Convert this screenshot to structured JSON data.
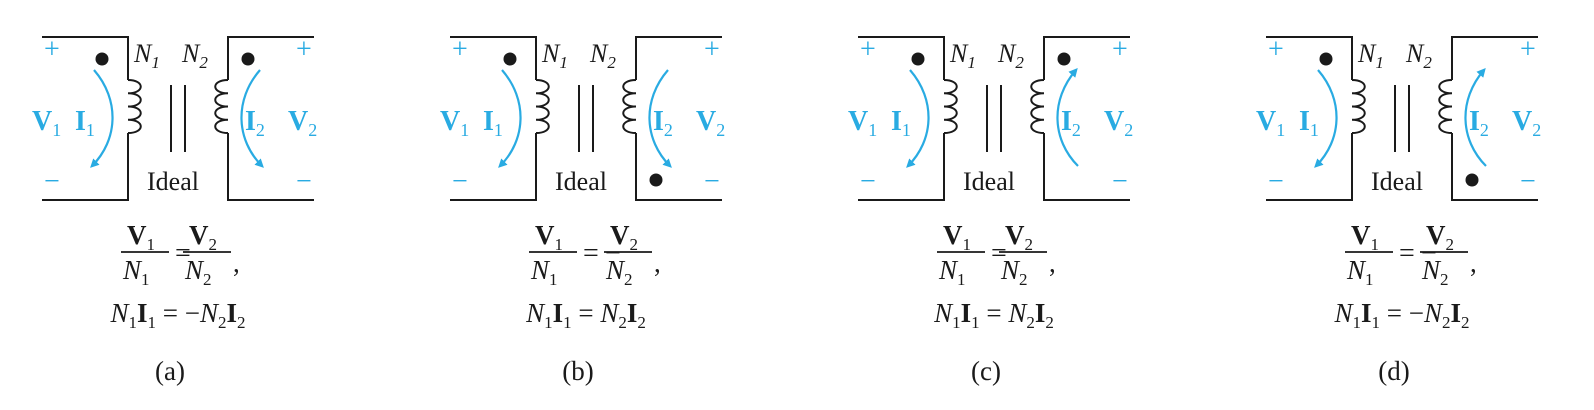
{
  "colors": {
    "accent": "#29abe2",
    "ink": "#1a1a1a"
  },
  "labels": {
    "plus": "+",
    "minus": "−",
    "N": "N",
    "sub1": "1",
    "sub2": "2",
    "V": "V",
    "I": "I",
    "ideal": "Ideal"
  },
  "panels": [
    {
      "caption": "(a)",
      "dot_primary": "top",
      "dot_secondary": "top",
      "i1_direction": "down",
      "i2_direction": "down",
      "voltage_sign": "",
      "current_sign": "−",
      "comma": ","
    },
    {
      "caption": "(b)",
      "dot_primary": "top",
      "dot_secondary": "bottom",
      "i1_direction": "down",
      "i2_direction": "down",
      "voltage_sign": "−",
      "current_sign": "",
      "comma": ","
    },
    {
      "caption": "(c)",
      "dot_primary": "top",
      "dot_secondary": "top",
      "i1_direction": "down",
      "i2_direction": "up",
      "voltage_sign": "",
      "current_sign": "",
      "comma": ","
    },
    {
      "caption": "(d)",
      "dot_primary": "top",
      "dot_secondary": "bottom",
      "i1_direction": "down",
      "i2_direction": "up",
      "voltage_sign": "−",
      "current_sign": "−",
      "comma": ","
    }
  ]
}
